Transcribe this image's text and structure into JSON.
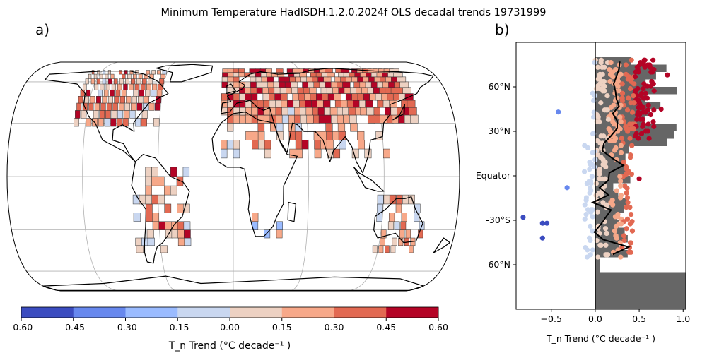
{
  "title": "Minimum Temperature HadISDH.1.2.0.2024f OLS decadal trends 19731999",
  "panel_labels": [
    "a)",
    "b)"
  ],
  "colors": {
    "bins": [
      "#3b4cc0",
      "#6788ee",
      "#9abbff",
      "#c9d7f0",
      "#edd1c2",
      "#f7a889",
      "#e26952",
      "#b40426"
    ],
    "histogram": "#666666",
    "mean_line": "#000000",
    "zero_line": "#000000",
    "grid": "#b0b0b0"
  },
  "chart_data": [
    {
      "type": "heatmap",
      "panel": "a)",
      "projection": "Robinson",
      "grid": true,
      "colorbar": {
        "label": "T_n Trend (°C decade⁻¹ )",
        "ticks": [
          "-0.60",
          "-0.45",
          "-0.30",
          "-0.15",
          "0.00",
          "0.15",
          "0.30",
          "0.45",
          "0.60"
        ],
        "bounds": [
          -0.6,
          0.6
        ]
      }
    },
    {
      "type": "scatter",
      "panel": "b)",
      "xlabel": "T_n Trend (°C decade⁻¹ )",
      "xlim": [
        -0.9,
        1.03
      ],
      "ylim": [
        -90,
        90
      ],
      "xticks": [
        "−0.5",
        "0.0",
        "0.5",
        "1.0"
      ],
      "yticks": [
        {
          "lat": 60,
          "label": "60°N"
        },
        {
          "lat": 30,
          "label": "30°N"
        },
        {
          "lat": 0,
          "label": "Equator"
        },
        {
          "lat": -30,
          "label": "-30°S"
        },
        {
          "lat": -60,
          "label": "-60°N"
        }
      ],
      "outlier_points": [
        {
          "x": -0.82,
          "y": -28
        },
        {
          "x": -0.6,
          "y": -32
        },
        {
          "x": -0.55,
          "y": -32
        },
        {
          "x": -0.6,
          "y": -42
        },
        {
          "x": -0.42,
          "y": 43
        },
        {
          "x": 0.82,
          "y": 68
        },
        {
          "x": 0.75,
          "y": 45
        },
        {
          "x": 0.5,
          "y": -2
        },
        {
          "x": -0.32,
          "y": -8
        }
      ],
      "mean_profile": [
        {
          "lat": 77,
          "x": 0.28
        },
        {
          "lat": 72,
          "x": 0.27
        },
        {
          "lat": 67,
          "x": 0.24
        },
        {
          "lat": 62,
          "x": 0.21
        },
        {
          "lat": 57,
          "x": 0.23
        },
        {
          "lat": 52,
          "x": 0.24
        },
        {
          "lat": 47,
          "x": 0.27
        },
        {
          "lat": 42,
          "x": 0.2
        },
        {
          "lat": 37,
          "x": 0.25
        },
        {
          "lat": 32,
          "x": 0.25
        },
        {
          "lat": 27,
          "x": 0.18
        },
        {
          "lat": 22,
          "x": 0.1
        },
        {
          "lat": 17,
          "x": 0.08
        },
        {
          "lat": 12,
          "x": 0.19
        },
        {
          "lat": 7,
          "x": 0.32
        },
        {
          "lat": 2,
          "x": 0.16
        },
        {
          "lat": -3,
          "x": 0.15
        },
        {
          "lat": -8,
          "x": 0.05
        },
        {
          "lat": -13,
          "x": 0.15
        },
        {
          "lat": -18,
          "x": -0.03
        },
        {
          "lat": -23,
          "x": 0.18
        },
        {
          "lat": -28,
          "x": 0.12
        },
        {
          "lat": -33,
          "x": 0.06
        },
        {
          "lat": -38,
          "x": -0.01
        },
        {
          "lat": -43,
          "x": 0.09
        },
        {
          "lat": -48,
          "x": 0.38
        },
        {
          "lat": -53,
          "x": 0.2
        }
      ]
    }
  ]
}
